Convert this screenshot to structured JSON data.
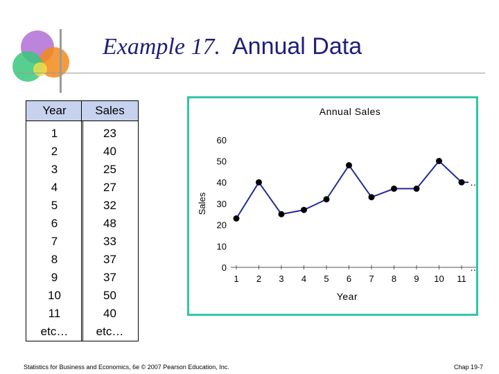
{
  "slide": {
    "title_italic": "Example 17.",
    "title_plain": "Annual Data",
    "footer_left": "Statistics for Business and Economics, 6e © 2007 Pearson Education, Inc.",
    "footer_right": "Chap 19-7"
  },
  "table": {
    "headers": [
      "Year",
      "Sales"
    ],
    "years": [
      "1",
      "2",
      "3",
      "4",
      "5",
      "6",
      "7",
      "8",
      "9",
      "10",
      "11",
      "etc…"
    ],
    "sales": [
      "23",
      "40",
      "25",
      "27",
      "32",
      "48",
      "33",
      "37",
      "37",
      "50",
      "40",
      "etc…"
    ]
  },
  "chart_data": {
    "type": "line",
    "title": "Annual Sales",
    "xlabel": "Year",
    "ylabel": "Sales",
    "x": [
      1,
      2,
      3,
      4,
      5,
      6,
      7,
      8,
      9,
      10,
      11
    ],
    "values": [
      23,
      40,
      25,
      27,
      32,
      48,
      33,
      37,
      37,
      50,
      40
    ],
    "x_ticks": [
      "1",
      "2",
      "3",
      "4",
      "5",
      "6",
      "7",
      "8",
      "9",
      "10",
      "11"
    ],
    "y_ticks": [
      "0",
      "10",
      "20",
      "30",
      "40",
      "50",
      "60"
    ],
    "ylim": [
      0,
      60
    ],
    "continuation_marks": [
      "…",
      "…"
    ],
    "line_color": "#1f2a9c",
    "marker_color": "#000000",
    "grid": false
  }
}
